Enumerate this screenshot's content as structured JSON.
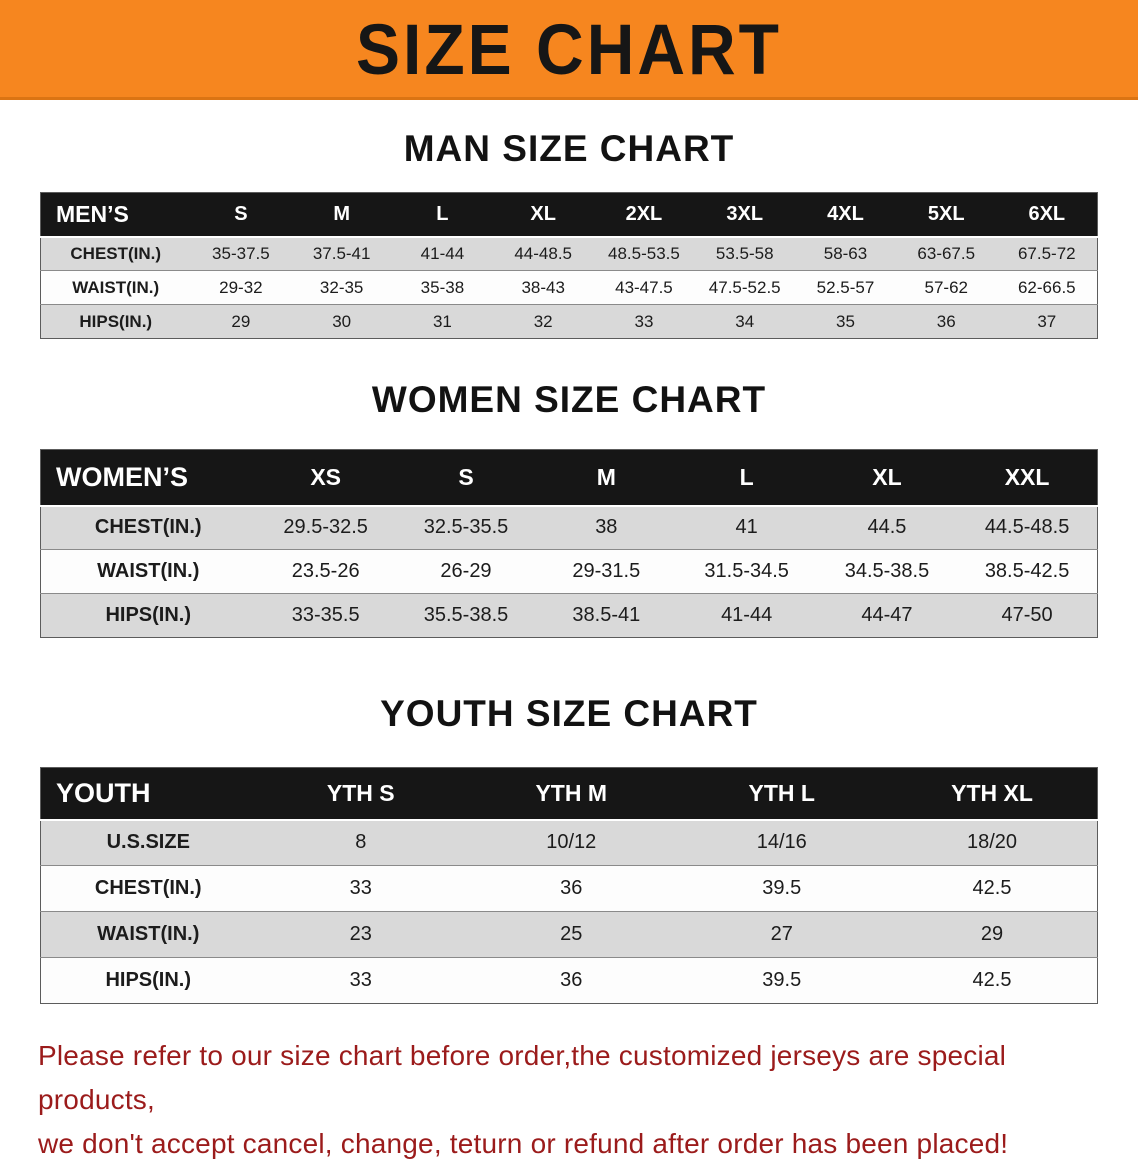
{
  "theme": {
    "banner_bg": "#f6861f",
    "banner_text": "#161616",
    "header_bg": "#161616",
    "header_text": "#ffffff",
    "stripe_bg": "#d9d9d9",
    "row_bg": "#fdfdfd",
    "heading_color": "#121212",
    "disclaimer_color": "#9b1b1b"
  },
  "banner": {
    "title": "SIZE CHART"
  },
  "sections": [
    {
      "heading": "MAN SIZE CHART",
      "table": {
        "header_label": "MEN’S",
        "columns": [
          "S",
          "M",
          "L",
          "XL",
          "2XL",
          "3XL",
          "4XL",
          "5XL",
          "6XL"
        ],
        "rows": [
          {
            "label": "CHEST(IN.)",
            "values": [
              "35-37.5",
              "37.5-41",
              "41-44",
              "44-48.5",
              "48.5-53.5",
              "53.5-58",
              "58-63",
              "63-67.5",
              "67.5-72"
            ]
          },
          {
            "label": "WAIST(IN.)",
            "values": [
              "29-32",
              "32-35",
              "35-38",
              "38-43",
              "43-47.5",
              "47.5-52.5",
              "52.5-57",
              "57-62",
              "62-66.5"
            ]
          },
          {
            "label": "HIPS(IN.)",
            "values": [
              "29",
              "30",
              "31",
              "32",
              "33",
              "34",
              "35",
              "36",
              "37"
            ]
          }
        ]
      }
    },
    {
      "heading": "WOMEN SIZE CHART",
      "table": {
        "header_label": "WOMEN’S",
        "columns": [
          "XS",
          "S",
          "M",
          "L",
          "XL",
          "XXL"
        ],
        "rows": [
          {
            "label": "CHEST(IN.)",
            "values": [
              "29.5-32.5",
              "32.5-35.5",
              "38",
              "41",
              "44.5",
              "44.5-48.5"
            ]
          },
          {
            "label": "WAIST(IN.)",
            "values": [
              "23.5-26",
              "26-29",
              "29-31.5",
              "31.5-34.5",
              "34.5-38.5",
              "38.5-42.5"
            ]
          },
          {
            "label": "HIPS(IN.)",
            "values": [
              "33-35.5",
              "35.5-38.5",
              "38.5-41",
              "41-44",
              "44-47",
              "47-50"
            ]
          }
        ]
      }
    },
    {
      "heading": "YOUTH SIZE CHART",
      "table": {
        "header_label": "YOUTH",
        "columns": [
          "YTH S",
          "YTH M",
          "YTH L",
          "YTH XL"
        ],
        "rows": [
          {
            "label": "U.S.SIZE",
            "values": [
              "8",
              "10/12",
              "14/16",
              "18/20"
            ]
          },
          {
            "label": "CHEST(IN.)",
            "values": [
              "33",
              "36",
              "39.5",
              "42.5"
            ]
          },
          {
            "label": "WAIST(IN.)",
            "values": [
              "23",
              "25",
              "27",
              "29"
            ]
          },
          {
            "label": "HIPS(IN.)",
            "values": [
              "33",
              "36",
              "39.5",
              "42.5"
            ]
          }
        ]
      }
    }
  ],
  "disclaimer": {
    "line1": "Please refer to our size chart before order,the customized jerseys are special products,",
    "line2": "we don't accept cancel, change, teturn or refund after order has been placed!"
  }
}
